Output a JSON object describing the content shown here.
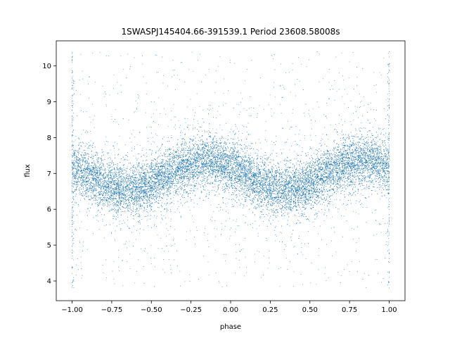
{
  "chart_data": {
    "type": "scatter",
    "title": "1SWASPJ145404.66-391539.1 Period 23608.58008s",
    "xlabel": "phase",
    "ylabel": "flux",
    "xlim": [
      -1.1,
      1.1
    ],
    "ylim": [
      3.45,
      10.7
    ],
    "xticks": [
      -1.0,
      -0.75,
      -0.5,
      -0.25,
      0.0,
      0.25,
      0.5,
      0.75,
      1.0
    ],
    "xtick_labels": [
      "−1.00",
      "−0.75",
      "−0.50",
      "−0.25",
      "0.00",
      "0.25",
      "0.50",
      "0.75",
      "1.00"
    ],
    "yticks": [
      4,
      5,
      6,
      7,
      8,
      9,
      10
    ],
    "ytick_labels": [
      "4",
      "5",
      "6",
      "7",
      "8",
      "9",
      "10"
    ],
    "grid": false,
    "legend": "none",
    "marker_color": "#1f77b4",
    "series": [
      {
        "x_range": [
          -1.0,
          1.0
        ],
        "model": {
          "mean_flux": 6.95,
          "amplitude": 0.4,
          "period_in_phase": 1.0,
          "maximum_phase": -0.15,
          "minimum_phase": [
            -0.6,
            0.45
          ],
          "core_spread": 0.35,
          "outlier_range": [
            3.8,
            10.4
          ]
        },
        "sample_points": [
          {
            "x": -1.0,
            "y": 7.3
          },
          {
            "x": -0.9,
            "y": 7.15
          },
          {
            "x": -0.8,
            "y": 6.9
          },
          {
            "x": -0.7,
            "y": 6.7
          },
          {
            "x": -0.6,
            "y": 6.55
          },
          {
            "x": -0.5,
            "y": 6.65
          },
          {
            "x": -0.4,
            "y": 6.9
          },
          {
            "x": -0.3,
            "y": 7.2
          },
          {
            "x": -0.2,
            "y": 7.35
          },
          {
            "x": -0.1,
            "y": 7.35
          },
          {
            "x": 0.0,
            "y": 7.25
          },
          {
            "x": 0.1,
            "y": 7.1
          },
          {
            "x": 0.2,
            "y": 6.9
          },
          {
            "x": 0.3,
            "y": 6.7
          },
          {
            "x": 0.4,
            "y": 6.55
          },
          {
            "x": 0.5,
            "y": 6.6
          },
          {
            "x": 0.6,
            "y": 6.85
          },
          {
            "x": 0.7,
            "y": 7.1
          },
          {
            "x": 0.8,
            "y": 7.3
          },
          {
            "x": 0.9,
            "y": 7.35
          },
          {
            "x": 1.0,
            "y": 7.3
          }
        ]
      }
    ]
  }
}
